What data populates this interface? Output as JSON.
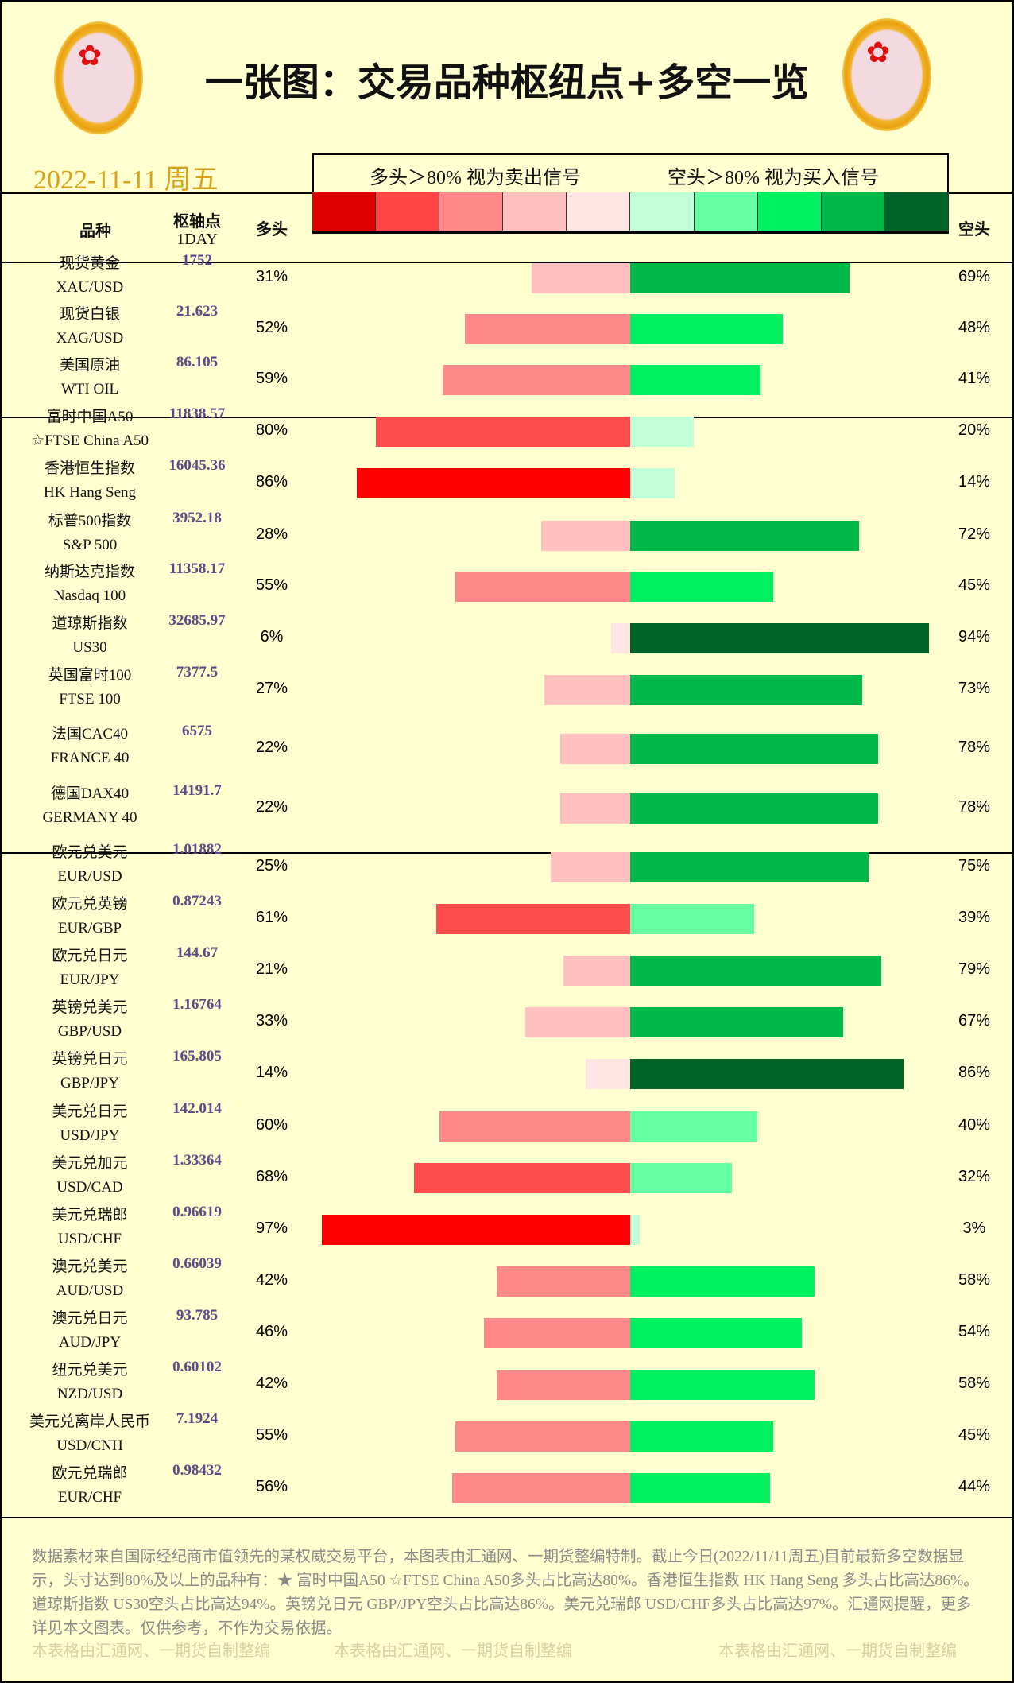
{
  "header": {
    "title": "一张图：交易品种枢纽点+多空一览",
    "date": "2022-11-11 周五",
    "legend_long": "多头＞80% 视为卖出信号",
    "legend_short": "空头＞80% 视为买入信号",
    "legend_colors": [
      "#dd0000",
      "#ff4545",
      "#ff8888",
      "#ffc0c0",
      "#ffe4e4",
      "#c0ffd8",
      "#66ffa3",
      "#00f060",
      "#00b84a",
      "#006428"
    ]
  },
  "columns": {
    "name": "品种",
    "pivot": "枢轴点",
    "pivot_sub": "1DAY",
    "long": "多头",
    "short": "空头"
  },
  "groups": [
    [
      {
        "cn": "现货黄金",
        "en": "XAU/USD",
        "pivot": "1752",
        "long": 31,
        "short": 69
      },
      {
        "cn": "现货白银",
        "en": "XAG/USD",
        "pivot": "21.623",
        "long": 52,
        "short": 48
      },
      {
        "cn": "美国原油",
        "en": "WTI OIL",
        "pivot": "86.105",
        "long": 59,
        "short": 41
      }
    ],
    [
      {
        "cn": "富时中国A50",
        "en": "☆FTSE China A50",
        "pivot": "11838.57",
        "long": 80,
        "short": 20
      },
      {
        "cn": "香港恒生指数",
        "en": "HK Hang Seng",
        "pivot": "16045.36",
        "long": 86,
        "short": 14
      },
      {
        "cn": "标普500指数",
        "en": "S&P 500",
        "pivot": "3952.18",
        "long": 28,
        "short": 72
      },
      {
        "cn": "纳斯达克指数",
        "en": "Nasdaq 100",
        "pivot": "11358.17",
        "long": 55,
        "short": 45
      },
      {
        "cn": "道琼斯指数",
        "en": "US30",
        "pivot": "32685.97",
        "long": 6,
        "short": 94
      },
      {
        "cn": "英国富时100",
        "en": "FTSE 100",
        "pivot": "7377.5",
        "long": 27,
        "short": 73
      },
      {
        "cn": "法国CAC40",
        "en": "FRANCE 40",
        "pivot": "6575",
        "long": 22,
        "short": 78
      },
      {
        "cn": "德国DAX40",
        "en": "GERMANY 40",
        "pivot": "14191.7",
        "long": 22,
        "short": 78
      }
    ],
    [
      {
        "cn": "欧元兑美元",
        "en": "EUR/USD",
        "pivot": "1.01882",
        "long": 25,
        "short": 75
      },
      {
        "cn": "欧元兑英镑",
        "en": "EUR/GBP",
        "pivot": "0.87243",
        "long": 61,
        "short": 39
      },
      {
        "cn": "欧元兑日元",
        "en": "EUR/JPY",
        "pivot": "144.67",
        "long": 21,
        "short": 79
      },
      {
        "cn": "英镑兑美元",
        "en": "GBP/USD",
        "pivot": "1.16764",
        "long": 33,
        "short": 67
      },
      {
        "cn": "英镑兑日元",
        "en": "GBP/JPY",
        "pivot": "165.805",
        "long": 14,
        "short": 86
      },
      {
        "cn": "美元兑日元",
        "en": "USD/JPY",
        "pivot": "142.014",
        "long": 60,
        "short": 40
      },
      {
        "cn": "美元兑加元",
        "en": "USD/CAD",
        "pivot": "1.33364",
        "long": 68,
        "short": 32
      },
      {
        "cn": "美元兑瑞郎",
        "en": "USD/CHF",
        "pivot": "0.96619",
        "long": 97,
        "short": 3
      },
      {
        "cn": "澳元兑美元",
        "en": "AUD/USD",
        "pivot": "0.66039",
        "long": 42,
        "short": 58
      },
      {
        "cn": "澳元兑日元",
        "en": "AUD/JPY",
        "pivot": "93.785",
        "long": 46,
        "short": 54
      },
      {
        "cn": "纽元兑美元",
        "en": "NZD/USD",
        "pivot": "0.60102",
        "long": 42,
        "short": 58
      },
      {
        "cn": "美元兑离岸人民币",
        "en": "USD/CNH",
        "pivot": "7.1924",
        "long": 55,
        "short": 45
      },
      {
        "cn": "欧元兑瑞郎",
        "en": "EUR/CHF",
        "pivot": "0.98432",
        "long": 56,
        "short": 44
      }
    ]
  ],
  "footer": {
    "text": "数据素材来自国际经纪商市值领先的某权威交易平台，本图表由汇通网、一期货整编特制。截止今日(2022/11/11周五)目前最新多空数据显示，头寸达到80%及以上的品种有：★ 富时中国A50 ☆FTSE China A50多头占比高达80%。香港恒生指数 HK Hang Seng 多头占比高达86%。道琼斯指数 US30空头占比高达94%。英镑兑日元 GBP/JPY空头占比高达86%。美元兑瑞郎 USD/CHF多头占比高达97%。汇通网提醒，更多详见本文图表。仅供参考，不作为交易依据。",
    "watermark": "本表格由汇通网、一期货自制整编"
  }
}
